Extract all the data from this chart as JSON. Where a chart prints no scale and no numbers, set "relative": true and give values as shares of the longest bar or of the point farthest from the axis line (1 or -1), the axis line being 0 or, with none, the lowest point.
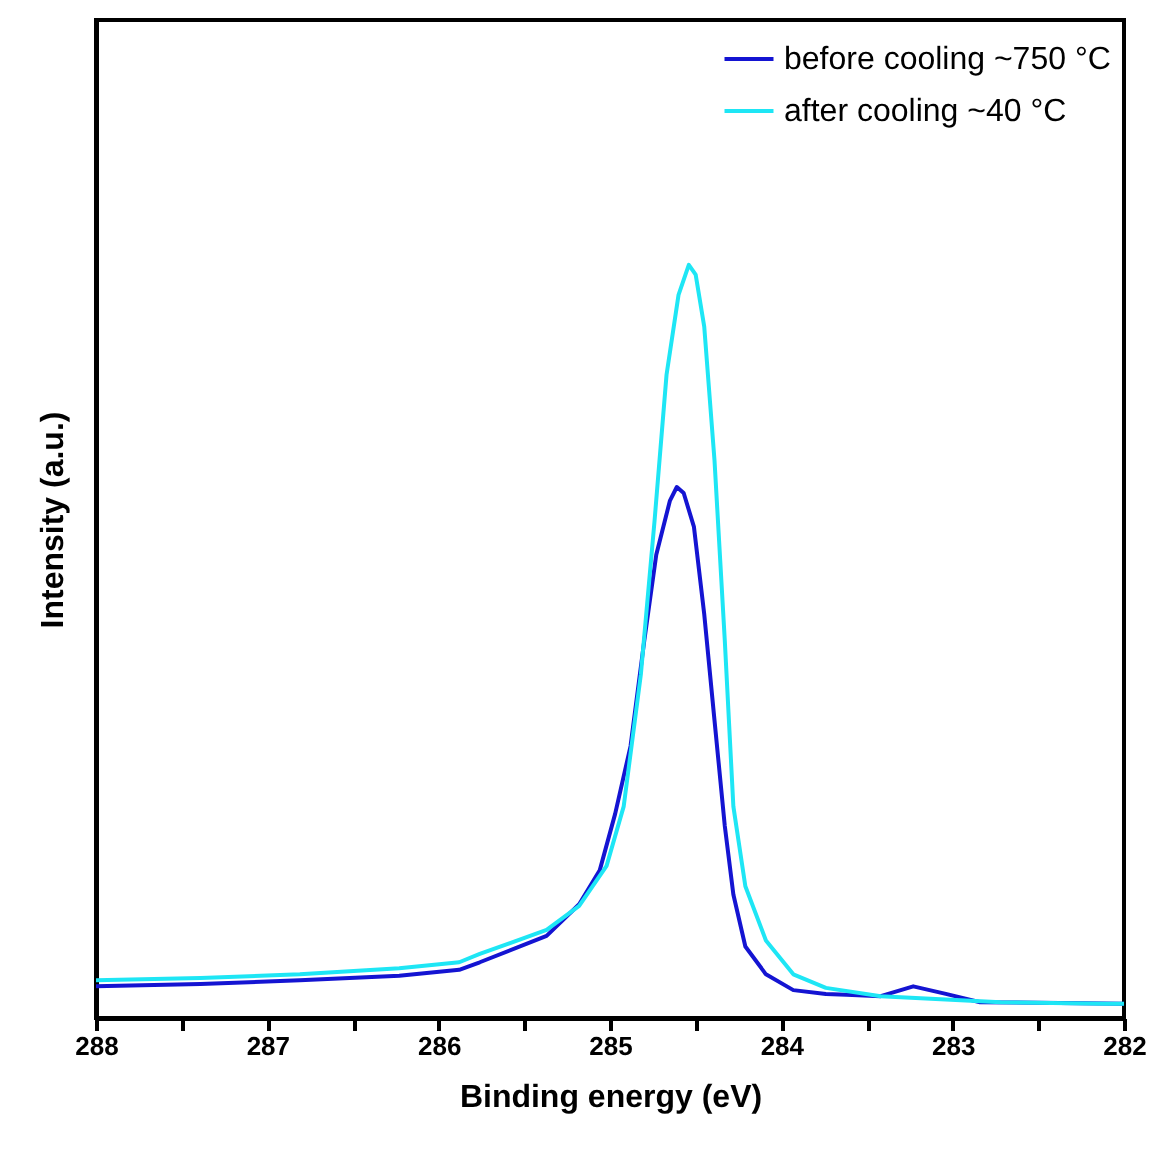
{
  "chart_data": {
    "type": "line",
    "xlabel": "Binding energy (eV)",
    "ylabel": "Intensity (a.u.)",
    "relative": true,
    "legend": "top right",
    "grid": false,
    "xlim": [
      288,
      282
    ],
    "xticks": [
      288,
      {
        "value": 287.5,
        "label": null
      },
      287,
      {
        "value": 286.5,
        "label": null
      },
      286,
      {
        "value": 285.5,
        "label": null
      },
      285,
      {
        "value": 284.5,
        "label": null
      },
      284,
      {
        "value": 283.5,
        "label": null
      },
      283,
      {
        "value": 282.5,
        "label": null
      },
      282
    ],
    "series": [
      {
        "name": "before cooling ~750 °C",
        "color": "#1414d2",
        "x": [
          288.0,
          287.39,
          286.81,
          286.23,
          285.88,
          285.76,
          285.37,
          285.18,
          285.06,
          284.97,
          284.88,
          284.8,
          284.73,
          284.65,
          284.61,
          284.57,
          284.51,
          284.45,
          284.39,
          284.33,
          284.28,
          284.21,
          284.09,
          283.93,
          283.74,
          283.62,
          283.42,
          283.23,
          283.04,
          282.84,
          282.0
        ],
        "values": [
          0.042,
          0.045,
          0.05,
          0.056,
          0.064,
          0.074,
          0.109,
          0.151,
          0.196,
          0.271,
          0.361,
          0.501,
          0.615,
          0.687,
          0.705,
          0.697,
          0.652,
          0.536,
          0.395,
          0.255,
          0.164,
          0.095,
          0.058,
          0.037,
          0.032,
          0.031,
          0.029,
          0.042,
          0.032,
          0.021,
          0.019
        ]
      },
      {
        "name": "after cooling ~40 °C",
        "color": "#1ee6f5",
        "x": [
          288.0,
          287.39,
          286.81,
          286.23,
          285.88,
          285.76,
          285.37,
          285.18,
          285.02,
          284.92,
          284.82,
          284.74,
          284.67,
          284.6,
          284.54,
          284.5,
          284.45,
          284.39,
          284.33,
          284.28,
          284.21,
          284.09,
          283.93,
          283.74,
          283.42,
          282.72,
          282.11,
          282.0
        ],
        "values": [
          0.05,
          0.053,
          0.058,
          0.066,
          0.074,
          0.085,
          0.117,
          0.149,
          0.202,
          0.281,
          0.456,
          0.66,
          0.854,
          0.96,
          1.0,
          0.987,
          0.918,
          0.74,
          0.501,
          0.281,
          0.175,
          0.103,
          0.058,
          0.04,
          0.029,
          0.021,
          0.019,
          0.019
        ]
      }
    ]
  }
}
